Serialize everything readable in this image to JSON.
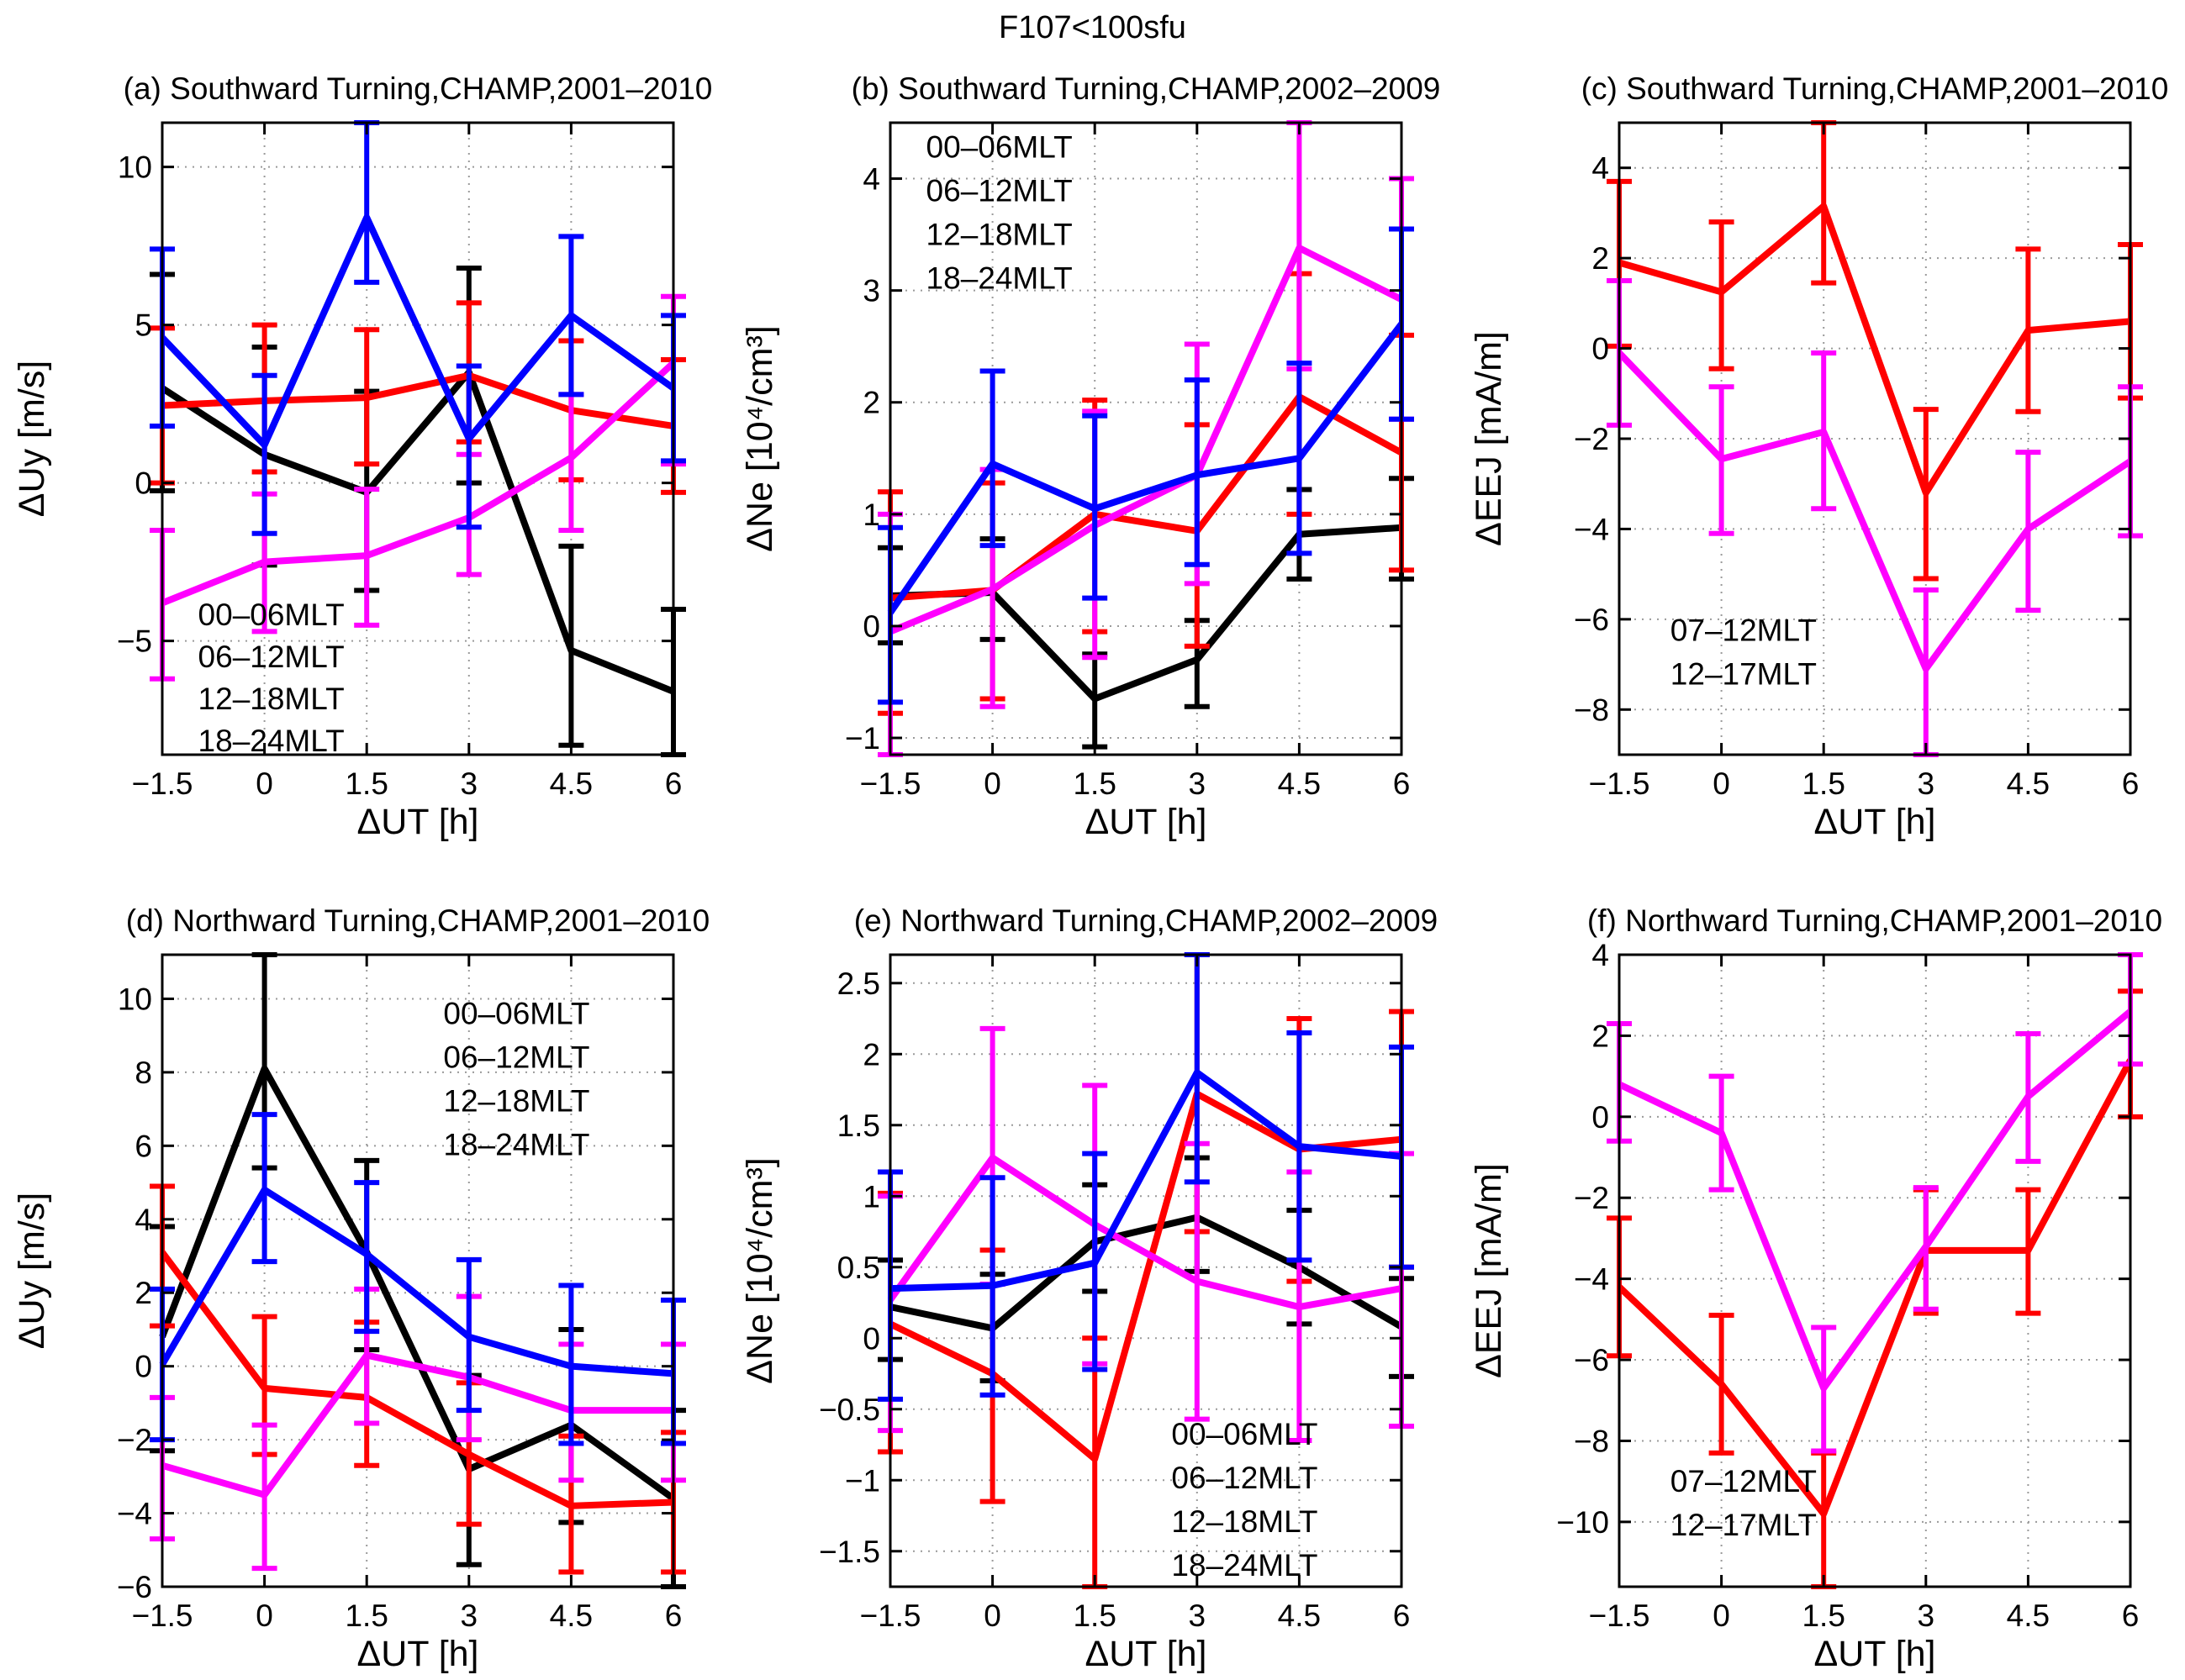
{
  "figure": {
    "title": "F107<100sfu",
    "background": "#ffffff",
    "frame_color": "#000000",
    "grid_color": "#9a9a9a"
  },
  "x_axis": {
    "label": "ΔUT [h]",
    "ticks": [
      -1.5,
      0,
      1.5,
      3,
      4.5,
      6
    ]
  },
  "mlt_colors": {
    "00-06MLT": "#000000",
    "06-12MLT": "#ff0000",
    "12-18MLT": "#ff00ff",
    "18-24MLT": "#0000ff",
    "07-12MLT": "#ff0000",
    "12-17MLT": "#ff00ff"
  },
  "chart_data": [
    {
      "id": "a",
      "type": "line",
      "title": "(a) Southward Turning,CHAMP,2001–2010",
      "xlabel": "ΔUT [h]",
      "ylabel": "ΔUy [m/s]",
      "x": [
        -1.5,
        0,
        1.5,
        3,
        4.5,
        6
      ],
      "ylim": [
        -8.6,
        11.4
      ],
      "yticks": [
        10,
        5,
        0,
        -5
      ],
      "grid": true,
      "legend": {
        "entries": [
          "00-06MLT",
          "06-12MLT",
          "12-18MLT",
          "18-24MLT"
        ],
        "position": "lower-left",
        "fx": 0.07,
        "fy": 0.795,
        "dy": 50
      },
      "series": [
        {
          "name": "00-06MLT",
          "color": "#000000",
          "y": [
            3.0,
            0.9,
            -0.3,
            3.5,
            -5.3,
            -6.6
          ],
          "err_lo": [
            -0.25,
            -2.6,
            -3.4,
            0.0,
            -8.3,
            -8.6
          ],
          "err_hi": [
            6.6,
            4.3,
            2.9,
            6.8,
            -2.0,
            -4.0
          ]
        },
        {
          "name": "06-12MLT",
          "color": "#ff0000",
          "y": [
            2.45,
            2.6,
            2.7,
            3.4,
            2.3,
            1.8
          ],
          "err_lo": [
            0.0,
            0.35,
            0.6,
            1.3,
            0.1,
            -0.3
          ],
          "err_hi": [
            4.9,
            5.0,
            4.85,
            5.7,
            4.5,
            3.9
          ]
        },
        {
          "name": "12-18MLT",
          "color": "#ff00ff",
          "y": [
            -3.8,
            -2.5,
            -2.3,
            -1.1,
            0.8,
            3.8
          ],
          "err_lo": [
            -6.2,
            -4.7,
            -4.5,
            -2.9,
            -1.5,
            0.6
          ],
          "err_hi": [
            -1.5,
            -0.35,
            -0.2,
            0.9,
            2.8,
            5.9
          ]
        },
        {
          "name": "18-24MLT",
          "color": "#0000ff",
          "y": [
            4.6,
            1.2,
            8.4,
            1.4,
            5.3,
            3.0
          ],
          "err_lo": [
            1.8,
            -1.6,
            6.35,
            -1.4,
            2.8,
            0.7
          ],
          "err_hi": [
            7.4,
            3.4,
            11.4,
            3.7,
            7.8,
            5.3
          ]
        }
      ]
    },
    {
      "id": "b",
      "type": "line",
      "title": "(b) Southward Turning,CHAMP,2002–2009",
      "xlabel": "ΔUT [h]",
      "ylabel": "ΔNe [10⁴/cm³]",
      "x": [
        -1.5,
        0,
        1.5,
        3,
        4.5,
        6
      ],
      "ylim": [
        -1.15,
        4.5
      ],
      "yticks": [
        4,
        3,
        2,
        1,
        0,
        -1
      ],
      "grid": true,
      "legend": {
        "entries": [
          "00-06MLT",
          "06-12MLT",
          "12-18MLT",
          "18-24MLT"
        ],
        "position": "upper-left",
        "fx": 0.07,
        "fy": 0.055,
        "dy": 52
      },
      "series": [
        {
          "name": "00-06MLT",
          "color": "#000000",
          "y": [
            0.27,
            0.3,
            -0.65,
            -0.3,
            0.82,
            0.88
          ],
          "err_lo": [
            -0.15,
            -0.12,
            -1.08,
            -0.72,
            0.42,
            0.42
          ],
          "err_hi": [
            0.7,
            0.78,
            -0.25,
            0.05,
            1.22,
            1.32
          ]
        },
        {
          "name": "06-12MLT",
          "color": "#ff0000",
          "y": [
            0.25,
            0.32,
            1.0,
            0.85,
            2.05,
            1.55
          ],
          "err_lo": [
            -0.78,
            -0.65,
            -0.05,
            -0.18,
            1.0,
            0.5
          ],
          "err_hi": [
            1.2,
            1.28,
            2.02,
            1.8,
            3.15,
            2.6
          ]
        },
        {
          "name": "12-18MLT",
          "color": "#ff00ff",
          "y": [
            -0.05,
            0.33,
            0.9,
            1.35,
            3.38,
            2.92
          ],
          "err_lo": [
            -1.15,
            -0.72,
            -0.28,
            0.38,
            2.3,
            1.85
          ],
          "err_hi": [
            1.0,
            1.4,
            1.92,
            2.52,
            4.5,
            4.0
          ]
        },
        {
          "name": "18-24MLT",
          "color": "#0000ff",
          "y": [
            0.12,
            1.45,
            1.05,
            1.35,
            1.5,
            2.7
          ],
          "err_lo": [
            -0.68,
            0.72,
            0.25,
            0.55,
            0.65,
            1.85
          ],
          "err_hi": [
            0.88,
            2.28,
            1.88,
            2.2,
            2.35,
            3.55
          ]
        }
      ]
    },
    {
      "id": "c",
      "type": "line",
      "title": "(c) Southward Turning,CHAMP,2001–2010",
      "xlabel": "ΔUT [h]",
      "ylabel": "ΔEEJ [mA/m]",
      "x": [
        -1.5,
        0,
        1.5,
        3,
        4.5,
        6
      ],
      "ylim": [
        -9.0,
        5.0
      ],
      "yticks": [
        4,
        2,
        0,
        -2,
        -4,
        -6,
        -8
      ],
      "grid": true,
      "legend": {
        "entries": [
          "07-12MLT",
          "12-17MLT"
        ],
        "position": "lower-left",
        "fx": 0.1,
        "fy": 0.82,
        "dy": 52
      },
      "series": [
        {
          "name": "07-12MLT",
          "color": "#ff0000",
          "y": [
            1.9,
            1.25,
            3.15,
            -3.2,
            0.4,
            0.6
          ],
          "err_lo": [
            0.05,
            -0.45,
            1.45,
            -5.1,
            -1.4,
            -1.1
          ],
          "err_hi": [
            3.7,
            2.8,
            5.0,
            -1.35,
            2.2,
            2.3
          ]
        },
        {
          "name": "12-17MLT",
          "color": "#ff00ff",
          "y": [
            -0.1,
            -2.45,
            -1.85,
            -7.1,
            -4.0,
            -2.5
          ],
          "err_lo": [
            -1.7,
            -4.1,
            -3.55,
            -9.0,
            -5.8,
            -4.15
          ],
          "err_hi": [
            1.5,
            -0.85,
            -0.1,
            -5.35,
            -2.3,
            -0.85
          ]
        }
      ]
    },
    {
      "id": "d",
      "type": "line",
      "title": "(d) Northward Turning,CHAMP,2001–2010",
      "xlabel": "ΔUT [h]",
      "ylabel": "ΔUy [m/s]",
      "x": [
        -1.5,
        0,
        1.5,
        3,
        4.5,
        6
      ],
      "ylim": [
        -6.0,
        11.2
      ],
      "yticks": [
        10,
        8,
        6,
        4,
        2,
        0,
        -2,
        -4,
        -6
      ],
      "grid": true,
      "legend": {
        "entries": [
          "00-06MLT",
          "06-12MLT",
          "12-18MLT",
          "18-24MLT"
        ],
        "position": "upper-right",
        "fx": 0.55,
        "fy": 0.11,
        "dy": 52
      },
      "series": [
        {
          "name": "00-06MLT",
          "color": "#000000",
          "y": [
            0.8,
            8.1,
            3.1,
            -2.8,
            -1.6,
            -3.6
          ],
          "err_lo": [
            -2.3,
            5.4,
            0.45,
            -5.4,
            -4.25,
            -6.0
          ],
          "err_hi": [
            3.8,
            11.2,
            5.6,
            -0.25,
            1.0,
            -1.2
          ]
        },
        {
          "name": "06-12MLT",
          "color": "#ff0000",
          "y": [
            3.1,
            -0.6,
            -0.85,
            -2.4,
            -3.8,
            -3.7
          ],
          "err_lo": [
            1.1,
            -2.4,
            -2.7,
            -4.3,
            -5.6,
            -5.6
          ],
          "err_hi": [
            4.9,
            1.35,
            1.2,
            -0.45,
            -1.9,
            -1.8
          ]
        },
        {
          "name": "12-18MLT",
          "color": "#ff00ff",
          "y": [
            -2.7,
            -3.5,
            0.3,
            -0.3,
            -1.2,
            -1.2
          ],
          "err_lo": [
            -4.7,
            -5.5,
            -1.55,
            -2.0,
            -3.1,
            -3.1
          ],
          "err_hi": [
            -0.85,
            -1.6,
            2.1,
            1.9,
            0.6,
            0.6
          ]
        },
        {
          "name": "18-24MLT",
          "color": "#0000ff",
          "y": [
            0.05,
            4.8,
            3.05,
            0.8,
            0.0,
            -0.2
          ],
          "err_lo": [
            -2.0,
            2.85,
            0.95,
            -1.2,
            -2.1,
            -2.1
          ],
          "err_hi": [
            2.1,
            6.85,
            5.0,
            2.9,
            2.2,
            1.8
          ]
        }
      ]
    },
    {
      "id": "e",
      "type": "line",
      "title": "(e) Northward Turning,CHAMP,2002–2009",
      "xlabel": "ΔUT [h]",
      "ylabel": "ΔNe [10⁴/cm³]",
      "x": [
        -1.5,
        0,
        1.5,
        3,
        4.5,
        6
      ],
      "ylim": [
        -1.75,
        2.7
      ],
      "yticks": [
        2.5,
        2,
        1.5,
        1,
        0.5,
        0,
        -0.5,
        -1,
        -1.5
      ],
      "grid": true,
      "legend": {
        "entries": [
          "00-06MLT",
          "06-12MLT",
          "12-18MLT",
          "18-24MLT"
        ],
        "position": "lower-right",
        "fx": 0.55,
        "fy": 0.775,
        "dy": 52
      },
      "series": [
        {
          "name": "00-06MLT",
          "color": "#000000",
          "y": [
            0.22,
            0.07,
            0.68,
            0.85,
            0.5,
            0.08
          ],
          "err_lo": [
            -0.15,
            -0.3,
            0.33,
            0.47,
            0.1,
            -0.27
          ],
          "err_hi": [
            0.55,
            0.45,
            1.08,
            1.27,
            0.9,
            0.42
          ]
        },
        {
          "name": "06-12MLT",
          "color": "#ff0000",
          "y": [
            0.1,
            -0.25,
            -0.85,
            1.72,
            1.33,
            1.4
          ],
          "err_lo": [
            -0.8,
            -1.15,
            -1.75,
            0.75,
            0.4,
            0.5
          ],
          "err_hi": [
            1.02,
            0.62,
            0.0,
            2.7,
            2.25,
            2.3
          ]
        },
        {
          "name": "12-18MLT",
          "color": "#ff00ff",
          "y": [
            0.27,
            1.27,
            0.8,
            0.4,
            0.22,
            0.35
          ],
          "err_lo": [
            -0.65,
            0.38,
            -0.18,
            -0.57,
            -0.72,
            -0.62
          ],
          "err_hi": [
            1.0,
            2.18,
            1.78,
            1.37,
            1.17,
            1.3
          ]
        },
        {
          "name": "18-24MLT",
          "color": "#0000ff",
          "y": [
            0.35,
            0.37,
            0.53,
            1.87,
            1.35,
            1.28
          ],
          "err_lo": [
            -0.43,
            -0.4,
            -0.22,
            1.1,
            0.55,
            0.5
          ],
          "err_hi": [
            1.17,
            1.13,
            1.3,
            2.7,
            2.15,
            2.05
          ]
        }
      ]
    },
    {
      "id": "f",
      "type": "line",
      "title": "(f) Northward Turning,CHAMP,2001–2010",
      "xlabel": "ΔUT [h]",
      "ylabel": "ΔEEJ [mA/m]",
      "x": [
        -1.5,
        0,
        1.5,
        3,
        4.5,
        6
      ],
      "ylim": [
        -11.6,
        4.0
      ],
      "yticks": [
        4,
        2,
        0,
        -2,
        -4,
        -6,
        -8,
        -10
      ],
      "grid": true,
      "legend": {
        "entries": [
          "07-12MLT",
          "12-17MLT"
        ],
        "position": "lower-left",
        "fx": 0.1,
        "fy": 0.85,
        "dy": 52
      },
      "series": [
        {
          "name": "07-12MLT",
          "color": "#ff0000",
          "y": [
            -4.2,
            -6.6,
            -9.8,
            -3.3,
            -3.3,
            1.4
          ],
          "err_lo": [
            -5.9,
            -8.3,
            -11.6,
            -4.85,
            -4.85,
            0.0
          ],
          "err_hi": [
            -2.5,
            -4.9,
            -8.3,
            -1.8,
            -1.8,
            3.1
          ]
        },
        {
          "name": "12-17MLT",
          "color": "#ff00ff",
          "y": [
            0.8,
            -0.4,
            -6.7,
            -3.2,
            0.5,
            2.6
          ],
          "err_lo": [
            -0.6,
            -1.8,
            -8.25,
            -4.75,
            -1.1,
            1.3
          ],
          "err_hi": [
            2.3,
            1.0,
            -5.2,
            -1.75,
            2.05,
            4.0
          ]
        }
      ]
    }
  ]
}
